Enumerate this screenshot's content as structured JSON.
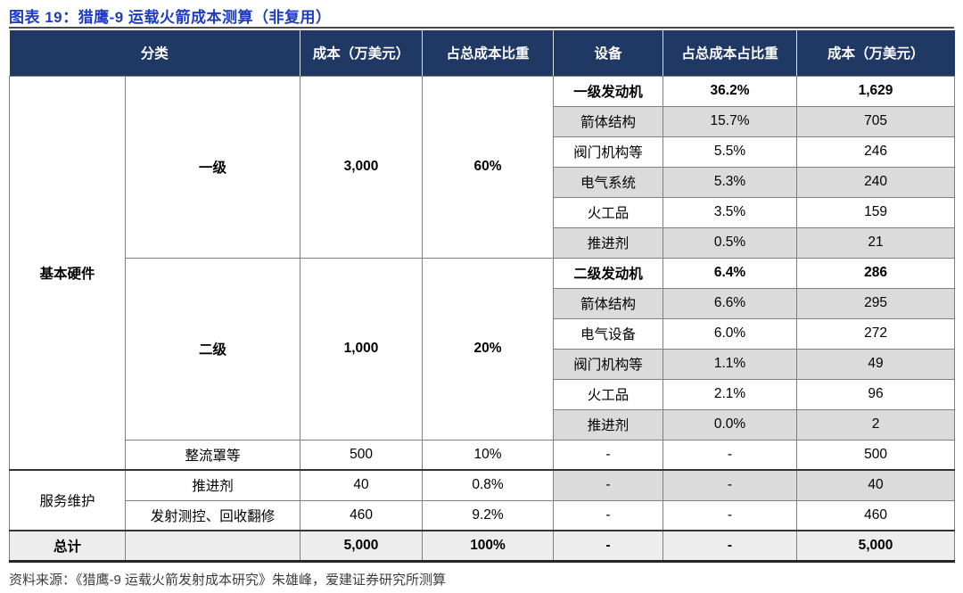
{
  "title": "图表 19：猎鹰-9 运载火箭成本测算（非复用）",
  "source": "资料来源：《猎鹰-9 运载火箭发射成本研究》朱雄峰，爱建证券研究所测算",
  "colors": {
    "title_blue": "#1E3CBE",
    "header_navy": "#1F3864",
    "band_gray": "#DBDBDB",
    "total_row_gray": "#EDEDED",
    "grid_line": "#7F7F7F",
    "section_line": "#333333"
  },
  "table": {
    "headers": {
      "category": "分类",
      "cost": "成本（万美元）",
      "share": "占总成本比重",
      "device": "设备",
      "device_share": "占总成本占比重",
      "device_cost": "成本（万美元）"
    },
    "groups": {
      "basic_hardware": "基本硬件",
      "service": "服务维护"
    },
    "stage1": {
      "label": "一级",
      "cost": "3,000",
      "share": "60%"
    },
    "stage2": {
      "label": "二级",
      "cost": "1,000",
      "share": "20%"
    },
    "stage1_devices": [
      {
        "name": "一级发动机",
        "share": "36.2%",
        "cost": "1,629"
      },
      {
        "name": "箭体结构",
        "share": "15.7%",
        "cost": "705"
      },
      {
        "name": "阀门机构等",
        "share": "5.5%",
        "cost": "246"
      },
      {
        "name": "电气系统",
        "share": "5.3%",
        "cost": "240"
      },
      {
        "name": "火工品",
        "share": "3.5%",
        "cost": "159"
      },
      {
        "name": "推进剂",
        "share": "0.5%",
        "cost": "21"
      }
    ],
    "stage2_devices": [
      {
        "name": "二级发动机",
        "share": "6.4%",
        "cost": "286"
      },
      {
        "name": "箭体结构",
        "share": "6.6%",
        "cost": "295"
      },
      {
        "name": "电气设备",
        "share": "6.0%",
        "cost": "272"
      },
      {
        "name": "阀门机构等",
        "share": "1.1%",
        "cost": "49"
      },
      {
        "name": "火工品",
        "share": "2.1%",
        "cost": "96"
      },
      {
        "name": "推进剂",
        "share": "0.0%",
        "cost": "2"
      }
    ],
    "fairing": {
      "label": "整流罩等",
      "cost": "500",
      "share": "10%",
      "device": "-",
      "device_share": "-",
      "device_cost": "500"
    },
    "service_rows": [
      {
        "label": "推进剂",
        "cost": "40",
        "share": "0.8%",
        "device": "-",
        "device_share": "-",
        "device_cost": "40"
      },
      {
        "label": "发射测控、回收翻修",
        "cost": "460",
        "share": "9.2%",
        "device": "-",
        "device_share": "-",
        "device_cost": "460"
      }
    ],
    "total_row": {
      "label": "总计",
      "sub": "",
      "cost": "5,000",
      "share": "100%",
      "device": "-",
      "device_share": "-",
      "device_cost": "5,000"
    }
  }
}
